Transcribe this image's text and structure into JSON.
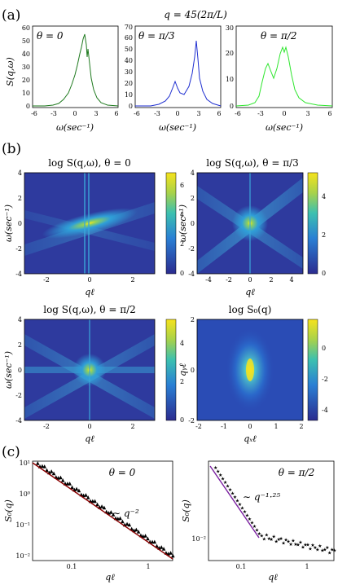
{
  "panel_labels": {
    "a": "(a)",
    "b": "(b)",
    "c": "(c)"
  },
  "panel_a": {
    "title": "q = 45(2π/L)",
    "ylabel": "S(q,ω)",
    "xlabel": "ω(sec⁻¹)",
    "xticks": [
      "-6",
      "-3",
      "0",
      "3",
      "6"
    ],
    "plots": [
      {
        "theta": "θ = 0",
        "color": "#1f7a1f",
        "yticks": [
          "0",
          "10",
          "20",
          "30",
          "40",
          "50",
          "60"
        ]
      },
      {
        "theta": "θ = π/3",
        "color": "#1f2fd0",
        "yticks": [
          "0",
          "10",
          "20",
          "30",
          "40",
          "50",
          "60",
          "70"
        ]
      },
      {
        "theta": "θ = π/2",
        "color": "#2ee62e",
        "yticks": [
          "0",
          "10",
          "20",
          "30"
        ]
      }
    ]
  },
  "panel_b": {
    "maps": [
      {
        "title": "log S(q,ω), θ = 0",
        "xlabel": "qℓ",
        "ylabel": "ω(sec⁻¹)",
        "xticks": [
          "-2",
          "0",
          "2"
        ],
        "yticks": [
          "4",
          "2",
          "0",
          "-2",
          "-4"
        ],
        "cticks": [
          "6",
          "4",
          "2",
          "0"
        ]
      },
      {
        "title": "log S(q,ω), θ = π/3",
        "xlabel": "qℓ",
        "ylabel": "ω(sec⁻¹)",
        "xticks": [
          "-4",
          "-2",
          "0",
          "2",
          "4"
        ],
        "yticks": [
          "4",
          "2",
          "0",
          "-2",
          "-4"
        ],
        "cticks": [
          "4",
          "2",
          "0"
        ]
      },
      {
        "title": "log S(q,ω), θ = π/2",
        "xlabel": "qℓ",
        "ylabel": "ω(sec⁻¹)",
        "xticks": [
          "-2",
          "0",
          "2"
        ],
        "yticks": [
          "4",
          "2",
          "0",
          "-2",
          "-4"
        ],
        "cticks": [
          "4",
          "2",
          "0"
        ]
      },
      {
        "title": "log S₀(q)",
        "xlabel": "qₓℓ",
        "ylabel": "qᵧℓ",
        "xticks": [
          "-2",
          "-1",
          "0",
          "1",
          "2"
        ],
        "yticks": [
          "2",
          "0",
          "-2"
        ],
        "cticks": [
          "0",
          "-2",
          "-4"
        ]
      }
    ]
  },
  "panel_c": {
    "plots": [
      {
        "theta": "θ = 0",
        "scaling": "∼ q⁻²",
        "ylabel": "S₀(q)",
        "xlabel": "qℓ",
        "xticks": [
          "0.1",
          "1"
        ],
        "yticks": [
          "10¹",
          "10⁰",
          "10⁻¹",
          "10⁻²"
        ],
        "fit_color": "#8b0000",
        "data_color": "#3ad63a"
      },
      {
        "theta": "θ = π/2",
        "scaling": "∼ q⁻¹·²⁵",
        "ylabel": "S₀(q)",
        "xlabel": "qℓ",
        "xticks": [
          "0.1",
          "1"
        ],
        "yticks": [
          "10⁻²"
        ],
        "fit_color": "#7a1fa0",
        "data_color": "#1a2fd6"
      }
    ]
  },
  "colors": {
    "cmap_low": "#2b2b8f",
    "cmap_mid": "#2fa0d8",
    "cmap_high": "#f4e21a"
  }
}
